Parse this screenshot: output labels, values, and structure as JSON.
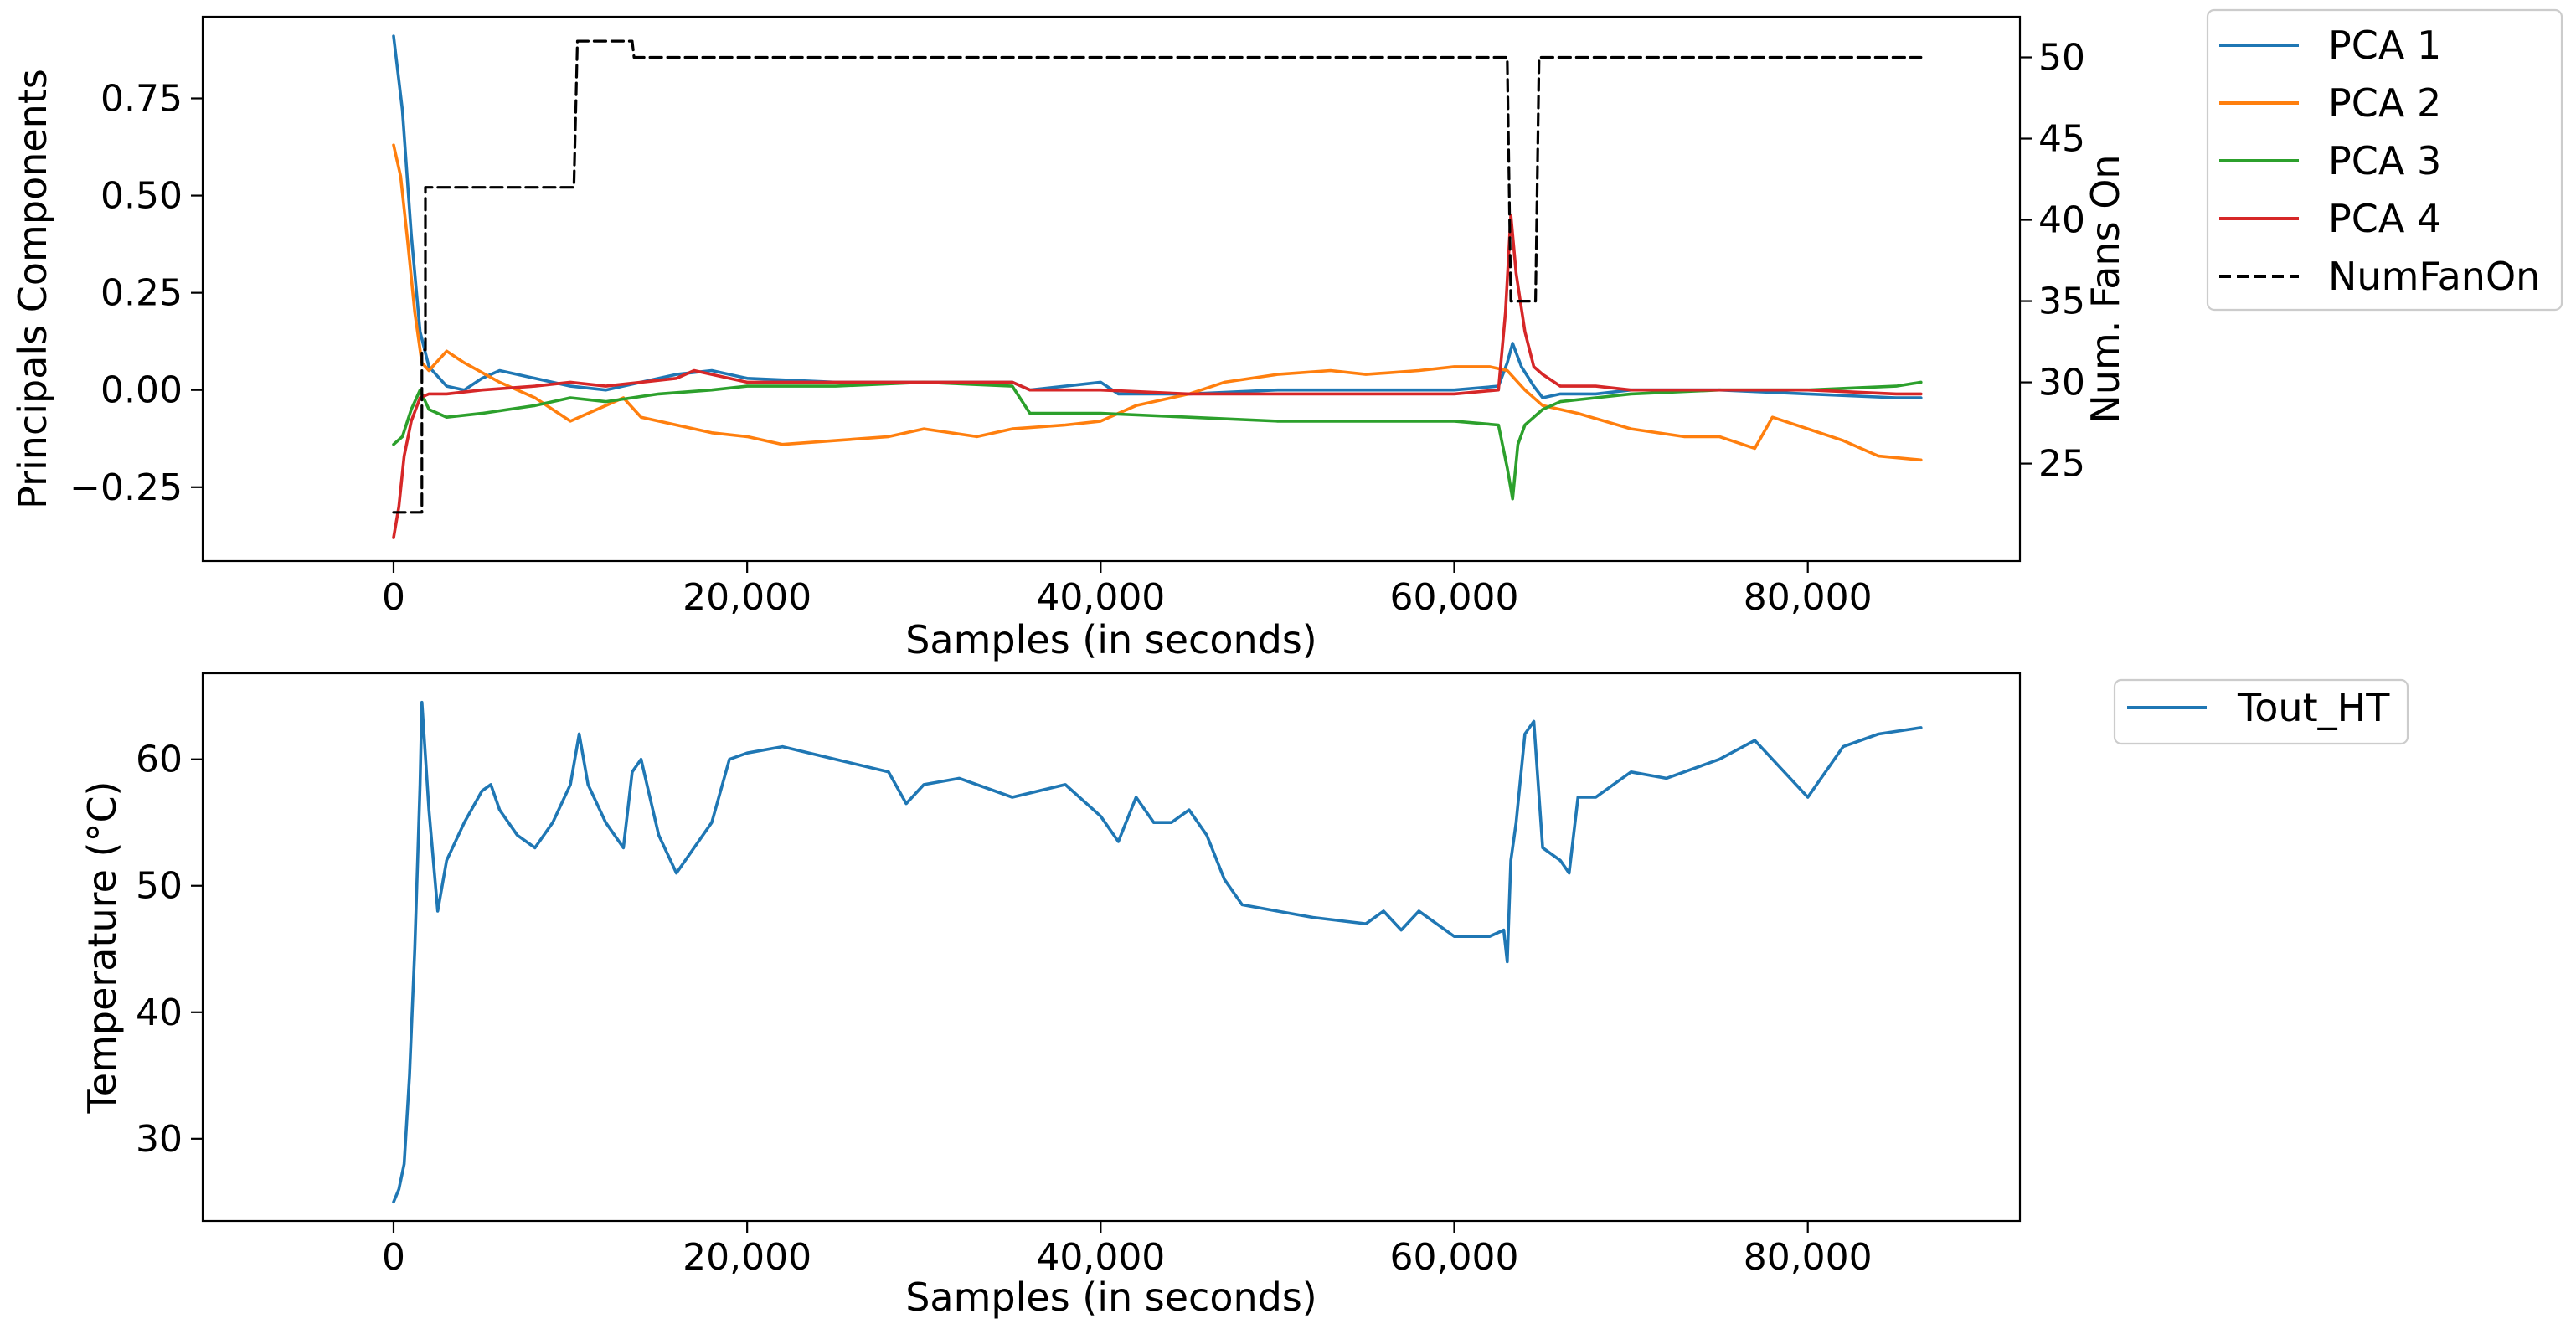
{
  "chart_data": [
    {
      "type": "line",
      "panel": "top",
      "title": "",
      "xlabel": "Samples (in seconds)",
      "ylabel": "Principals Components",
      "y2label": "Num. Fans On",
      "xlim": [
        -10800,
        92000
      ],
      "ylim": [
        -0.44,
        0.96
      ],
      "y2lim": [
        19,
        52.5
      ],
      "xticks": [
        0,
        20000,
        40000,
        60000,
        80000
      ],
      "xtick_labels": [
        "0",
        "20,000",
        "40,000",
        "60,000",
        "80,000"
      ],
      "yticks": [
        -0.25,
        0.0,
        0.25,
        0.5,
        0.75
      ],
      "ytick_labels": [
        "−0.25",
        "0.00",
        "0.25",
        "0.50",
        "0.75"
      ],
      "y2ticks": [
        25,
        30,
        35,
        40,
        45,
        50
      ],
      "y2tick_labels": [
        "25",
        "30",
        "35",
        "40",
        "45",
        "50"
      ],
      "legend_position": "outside-right-top",
      "series": [
        {
          "name": "PCA 1",
          "color": "#1f77b4",
          "axis": "left",
          "x": [
            0,
            500,
            1000,
            1500,
            2000,
            3000,
            4000,
            5000,
            6000,
            7000,
            8000,
            10000,
            12000,
            14000,
            16000,
            18000,
            20000,
            25000,
            30000,
            35000,
            36000,
            40000,
            41000,
            45000,
            50000,
            55000,
            60000,
            62500,
            63000,
            63300,
            63800,
            64500,
            65000,
            66000,
            68000,
            70000,
            75000,
            80000,
            85000,
            86400
          ],
          "y": [
            0.91,
            0.72,
            0.4,
            0.15,
            0.06,
            0.01,
            0.0,
            0.03,
            0.05,
            0.04,
            0.03,
            0.01,
            0.0,
            0.02,
            0.04,
            0.05,
            0.03,
            0.02,
            0.02,
            0.02,
            0.0,
            0.02,
            -0.01,
            -0.01,
            0.0,
            0.0,
            0.0,
            0.01,
            0.07,
            0.12,
            0.06,
            0.01,
            -0.02,
            -0.01,
            -0.01,
            0.0,
            0.0,
            -0.01,
            -0.02,
            -0.02
          ]
        },
        {
          "name": "PCA 2",
          "color": "#ff7f0e",
          "axis": "left",
          "x": [
            0,
            400,
            800,
            1200,
            1600,
            2000,
            3000,
            4000,
            6000,
            8000,
            10000,
            12000,
            13000,
            14000,
            16000,
            18000,
            20000,
            22000,
            25000,
            28000,
            30000,
            33000,
            35000,
            38000,
            40000,
            42000,
            45000,
            47000,
            50000,
            53000,
            55000,
            58000,
            60000,
            62000,
            63000,
            64000,
            65000,
            67000,
            70000,
            73000,
            75000,
            77000,
            78000,
            80000,
            82000,
            84000,
            86400
          ],
          "y": [
            0.63,
            0.55,
            0.38,
            0.2,
            0.07,
            0.05,
            0.1,
            0.07,
            0.02,
            -0.02,
            -0.08,
            -0.04,
            -0.02,
            -0.07,
            -0.09,
            -0.11,
            -0.12,
            -0.14,
            -0.13,
            -0.12,
            -0.1,
            -0.12,
            -0.1,
            -0.09,
            -0.08,
            -0.04,
            -0.01,
            0.02,
            0.04,
            0.05,
            0.04,
            0.05,
            0.06,
            0.06,
            0.05,
            0.0,
            -0.04,
            -0.06,
            -0.1,
            -0.12,
            -0.12,
            -0.15,
            -0.07,
            -0.1,
            -0.13,
            -0.17,
            -0.18
          ]
        },
        {
          "name": "PCA 3",
          "color": "#2ca02c",
          "axis": "left",
          "x": [
            0,
            500,
            1000,
            1500,
            2000,
            3000,
            5000,
            8000,
            10000,
            12000,
            15000,
            18000,
            20000,
            25000,
            30000,
            35000,
            36000,
            40000,
            45000,
            50000,
            55000,
            60000,
            62500,
            63000,
            63300,
            63600,
            64000,
            65000,
            66000,
            68000,
            70000,
            75000,
            80000,
            85000,
            86400
          ],
          "y": [
            -0.14,
            -0.12,
            -0.05,
            0.0,
            -0.05,
            -0.07,
            -0.06,
            -0.04,
            -0.02,
            -0.03,
            -0.01,
            0.0,
            0.01,
            0.01,
            0.02,
            0.01,
            -0.06,
            -0.06,
            -0.07,
            -0.08,
            -0.08,
            -0.08,
            -0.09,
            -0.2,
            -0.28,
            -0.14,
            -0.09,
            -0.05,
            -0.03,
            -0.02,
            -0.01,
            0.0,
            0.0,
            0.01,
            0.02
          ]
        },
        {
          "name": "PCA 4",
          "color": "#d62728",
          "axis": "left",
          "x": [
            0,
            300,
            600,
            1000,
            1500,
            2000,
            3000,
            5000,
            8000,
            10000,
            12000,
            14000,
            16000,
            17000,
            18000,
            19000,
            20000,
            25000,
            30000,
            35000,
            36000,
            40000,
            45000,
            50000,
            55000,
            60000,
            62500,
            62900,
            63200,
            63500,
            64000,
            64500,
            65000,
            66000,
            68000,
            70000,
            75000,
            80000,
            85000,
            86400
          ],
          "y": [
            -0.38,
            -0.3,
            -0.17,
            -0.08,
            -0.02,
            -0.01,
            -0.01,
            0.0,
            0.01,
            0.02,
            0.01,
            0.02,
            0.03,
            0.05,
            0.04,
            0.03,
            0.02,
            0.02,
            0.02,
            0.02,
            0.0,
            0.0,
            -0.01,
            -0.01,
            -0.01,
            -0.01,
            0.0,
            0.2,
            0.45,
            0.3,
            0.15,
            0.06,
            0.04,
            0.01,
            0.01,
            0.0,
            0.0,
            0.0,
            -0.01,
            -0.01
          ]
        },
        {
          "name": "NumFanOn",
          "color": "#000000",
          "dash": true,
          "axis": "right",
          "x": [
            0,
            1600,
            1600,
            1800,
            1800,
            10200,
            10400,
            13500,
            13600,
            63000,
            63200,
            64600,
            64800,
            86400
          ],
          "y": [
            22,
            22,
            32,
            32,
            42,
            42,
            51,
            51,
            50,
            50,
            35,
            35,
            50,
            50
          ]
        }
      ]
    },
    {
      "type": "line",
      "panel": "bottom",
      "title": "",
      "xlabel": "Samples (in seconds)",
      "ylabel": "Temperature (°C)",
      "xlim": [
        -10800,
        92000
      ],
      "ylim": [
        23.5,
        66.8
      ],
      "xticks": [
        0,
        20000,
        40000,
        60000,
        80000
      ],
      "xtick_labels": [
        "0",
        "20,000",
        "40,000",
        "60,000",
        "80,000"
      ],
      "yticks": [
        30,
        40,
        50,
        60
      ],
      "ytick_labels": [
        "30",
        "40",
        "50",
        "60"
      ],
      "legend_position": "outside-right-top",
      "series": [
        {
          "name": "Tout_HT",
          "color": "#1f77b4",
          "x": [
            0,
            300,
            600,
            900,
            1200,
            1500,
            1600,
            2000,
            2500,
            3000,
            4000,
            5000,
            5500,
            6000,
            7000,
            8000,
            9000,
            10000,
            10500,
            11000,
            12000,
            13000,
            13500,
            14000,
            15000,
            16000,
            17000,
            18000,
            19000,
            20000,
            22000,
            25000,
            28000,
            29000,
            30000,
            32000,
            35000,
            38000,
            40000,
            41000,
            42000,
            43000,
            44000,
            45000,
            46000,
            47000,
            48000,
            50000,
            52000,
            55000,
            56000,
            57000,
            58000,
            60000,
            62000,
            62800,
            63000,
            63200,
            63500,
            64000,
            64500,
            65000,
            66000,
            66500,
            67000,
            68000,
            70000,
            72000,
            75000,
            77000,
            78000,
            80000,
            82000,
            84000,
            86400
          ],
          "y": [
            25,
            26,
            28,
            35,
            45,
            58,
            64.5,
            56,
            48,
            52,
            55,
            57.5,
            58,
            56,
            54,
            53,
            55,
            58,
            62,
            58,
            55,
            53,
            59,
            60,
            54,
            51,
            53,
            55,
            60,
            60.5,
            61,
            60,
            59,
            56.5,
            58,
            58.5,
            57,
            58,
            55.5,
            53.5,
            57,
            55,
            55,
            56,
            54,
            50.5,
            48.5,
            48,
            47.5,
            47,
            48,
            46.5,
            48,
            46,
            46,
            46.5,
            44,
            52,
            55,
            62,
            63,
            53,
            52,
            51,
            57,
            57,
            59,
            58.5,
            60,
            61.5,
            60,
            57,
            61,
            62,
            62.5
          ]
        }
      ]
    }
  ]
}
